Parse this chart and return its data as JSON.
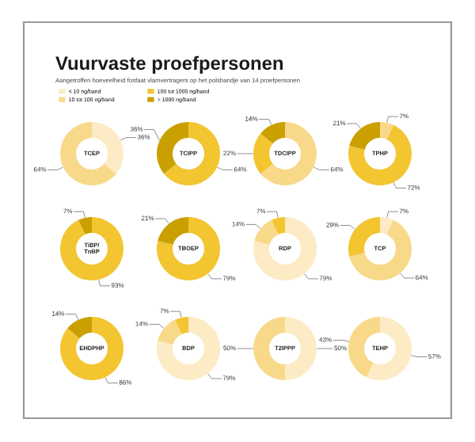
{
  "chart_data": [
    {
      "type": "donut",
      "title": "Vuurvaste proefpersonen",
      "subtitle": "Aangetroffen hoeveelheid fosfaat vlamvertragers op het polsbandje van 14 proefpersonen",
      "legend": "top",
      "annotations": [
        "TCEP"
      ],
      "categories": [
        "< 10 ng/band",
        "10 tot 100 ng/band",
        "100 tot 1000 ng/band",
        "> 1000 ng/band"
      ],
      "colors": [
        "#fcebc4",
        "#f8d98a",
        "#f2c531",
        "#c9a000"
      ],
      "values": [
        36,
        64,
        null,
        null
      ],
      "value_labels": [
        "36%",
        "64%",
        null,
        null
      ]
    },
    {
      "type": "donut",
      "annotations": [
        "TCIPP"
      ],
      "colors": [
        "#f2c531",
        "#c9a000"
      ],
      "values": [
        64,
        36
      ],
      "value_labels": [
        "64%",
        "36%"
      ]
    },
    {
      "type": "donut",
      "annotations": [
        "TDCIPP"
      ],
      "colors": [
        "#f8d98a",
        "#f2c531",
        "#c9a000"
      ],
      "values": [
        64,
        22,
        14
      ],
      "value_labels": [
        "64%",
        "22%",
        "14%"
      ]
    },
    {
      "type": "donut",
      "annotations": [
        "TPHP"
      ],
      "colors": [
        "#f8d98a",
        "#f2c531",
        "#c9a000"
      ],
      "values": [
        7,
        72,
        21
      ],
      "value_labels": [
        "7%",
        "72%",
        "21%"
      ]
    },
    {
      "type": "donut",
      "annotations": [
        "TiBP/\nTnBP"
      ],
      "colors": [
        "#f2c531",
        "#c9a000"
      ],
      "values": [
        93,
        7
      ],
      "value_labels": [
        "93%",
        "7%"
      ]
    },
    {
      "type": "donut",
      "annotations": [
        "TBOEP"
      ],
      "colors": [
        "#f2c531",
        "#c9a000"
      ],
      "values": [
        79,
        21
      ],
      "value_labels": [
        "79%",
        "21%"
      ]
    },
    {
      "type": "donut",
      "annotations": [
        "RDP"
      ],
      "colors": [
        "#fcebc4",
        "#f8d98a",
        "#f2c531"
      ],
      "values": [
        79,
        14,
        7
      ],
      "value_labels": [
        "79%",
        "14%",
        "7%"
      ]
    },
    {
      "type": "donut",
      "annotations": [
        "TCP"
      ],
      "colors": [
        "#fcebc4",
        "#f8d98a",
        "#f2c531"
      ],
      "values": [
        7,
        64,
        29
      ],
      "value_labels": [
        "7%",
        "64%",
        "29%"
      ]
    },
    {
      "type": "donut",
      "annotations": [
        "EHDPHP"
      ],
      "colors": [
        "#f2c531",
        "#c9a000"
      ],
      "values": [
        86,
        14
      ],
      "value_labels": [
        "86%",
        "14%"
      ]
    },
    {
      "type": "donut",
      "annotations": [
        "BDP"
      ],
      "colors": [
        "#fcebc4",
        "#f8d98a",
        "#f2c531"
      ],
      "values": [
        79,
        14,
        7
      ],
      "value_labels": [
        "79%",
        "14%",
        "7%"
      ]
    },
    {
      "type": "donut",
      "annotations": [
        "T2IPPP"
      ],
      "colors": [
        "#fcebc4",
        "#f8d98a"
      ],
      "values": [
        50,
        50
      ],
      "value_labels": [
        "50%",
        "50%"
      ]
    },
    {
      "type": "donut",
      "annotations": [
        "TEHP"
      ],
      "colors": [
        "#fcebc4",
        "#f8d98a"
      ],
      "values": [
        57,
        43
      ],
      "value_labels": [
        "57%",
        "43%"
      ]
    }
  ]
}
